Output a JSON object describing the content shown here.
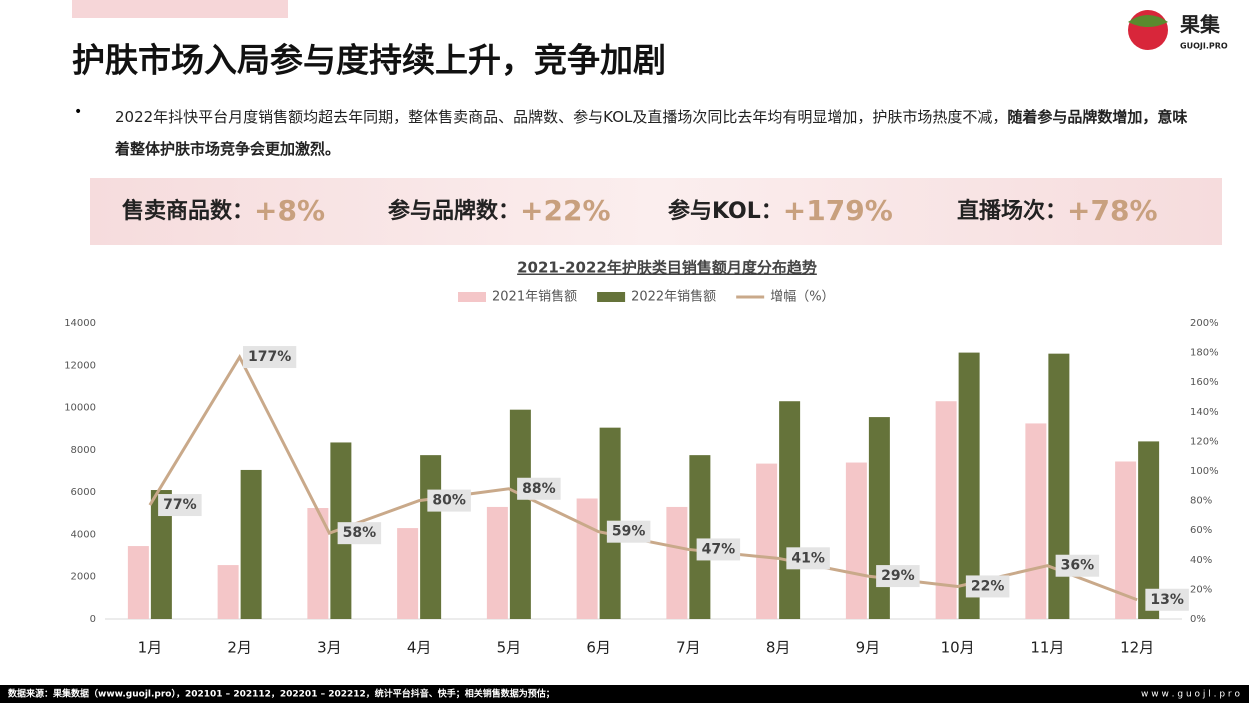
{
  "header": {
    "title": "护肤市场入局参与度持续上升，竞争加剧",
    "logo": "果集",
    "logo_sub": "GUOJI.PRO"
  },
  "bullet": {
    "text": "2022年抖快平台月度销售额均超去年同期，整体售卖商品、品牌数、参与KOL及直播场次同比去年均有明显增加，护肤市场热度不减，",
    "emphasis": "随着参与品牌数增加，意味着整体护肤市场竞争会更加激烈。"
  },
  "stats": [
    {
      "label": "售卖商品数：",
      "value": "+8%"
    },
    {
      "label": "参与品牌数：",
      "value": "+22%"
    },
    {
      "label": "参与KOL：",
      "value": "+179%"
    },
    {
      "label": "直播场次：",
      "value": "+78%"
    }
  ],
  "chart_data": {
    "type": "bar",
    "title": "2021-2022年护肤类目销售额月度分布趋势",
    "categories": [
      "1月",
      "2月",
      "3月",
      "4月",
      "5月",
      "6月",
      "7月",
      "8月",
      "9月",
      "10月",
      "11月",
      "12月"
    ],
    "series": [
      {
        "name": "2021年销售额",
        "color": "#f4c6c8",
        "values": [
          3450,
          2550,
          5250,
          4300,
          5300,
          5700,
          5300,
          7350,
          7400,
          10300,
          9250,
          7450
        ]
      },
      {
        "name": "2022年销售额",
        "color": "#65733a",
        "values": [
          6100,
          7050,
          8350,
          7750,
          9900,
          9050,
          7750,
          10300,
          9550,
          12600,
          12550,
          8400
        ]
      },
      {
        "name": "增幅（%）",
        "type": "line",
        "axis": "y2",
        "color": "#c9a98a",
        "values": [
          77,
          177,
          58,
          80,
          88,
          59,
          47,
          41,
          29,
          22,
          36,
          13
        ],
        "value_labels": [
          "77%",
          "177%",
          "58%",
          "80%",
          "88%",
          "59%",
          "47%",
          "41%",
          "29%",
          "22%",
          "36%",
          "13%"
        ]
      }
    ],
    "ylim": [
      0,
      14000
    ],
    "yticks": [
      0,
      2000,
      4000,
      6000,
      8000,
      10000,
      12000,
      14000
    ],
    "y2lim": [
      0,
      200
    ],
    "y2ticks": [
      {
        "value": 0,
        "label": "0%"
      },
      {
        "value": 20,
        "label": "20%"
      },
      {
        "value": 40,
        "label": "40%"
      },
      {
        "value": 60,
        "label": "60%"
      },
      {
        "value": 80,
        "label": "80%"
      },
      {
        "value": 100,
        "label": "100%"
      },
      {
        "value": 120,
        "label": "120%"
      },
      {
        "value": 140,
        "label": "140%"
      },
      {
        "value": 160,
        "label": "160%"
      },
      {
        "value": 180,
        "label": "180%"
      },
      {
        "value": 200,
        "label": "200%"
      }
    ]
  },
  "footer": {
    "source": "数据来源：果集数据（www.guojl.pro），202101 – 202112，202201 – 202212，统计平台抖音、快手；相关销售数据为预估；",
    "site": "w w w . g u o j l . p r o"
  }
}
